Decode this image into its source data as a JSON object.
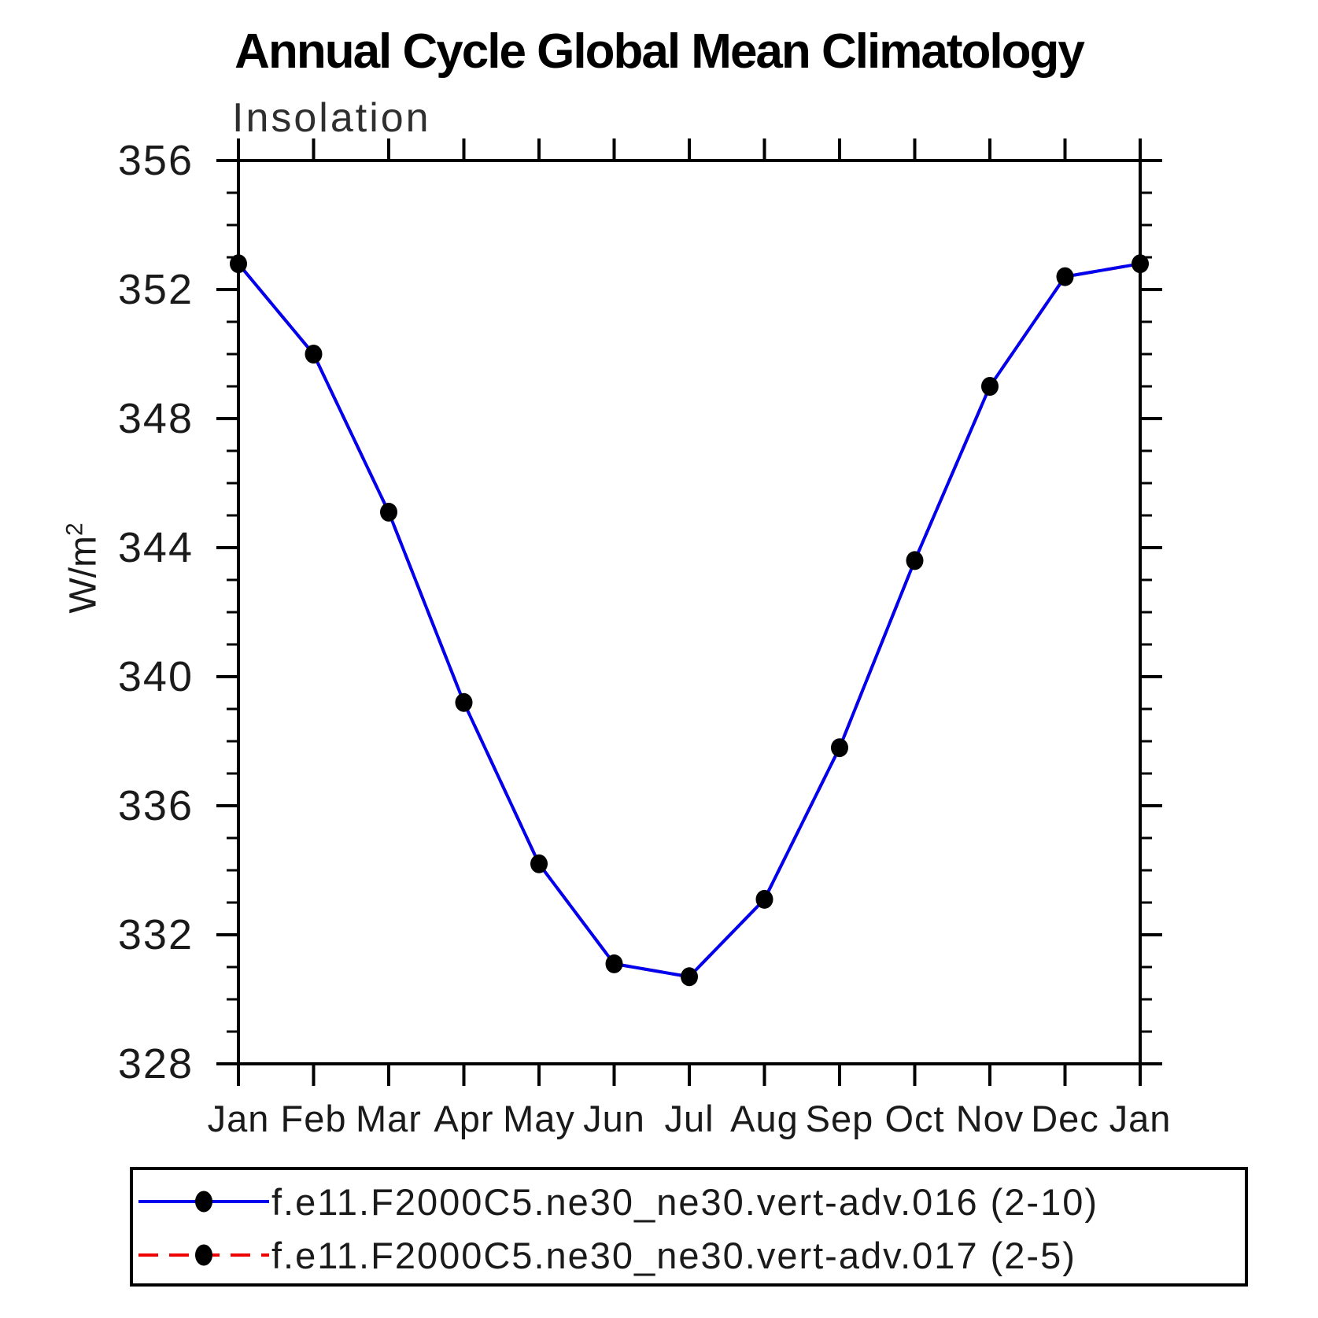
{
  "title": "Annual Cycle Global Mean Climatology",
  "panel_label": "Insolation",
  "y_axis": {
    "unit": "W/m²",
    "unit_base": "W/m",
    "unit_exponent": "2",
    "range": [
      328,
      356
    ],
    "major_tick_labels": [
      "328",
      "332",
      "336",
      "340",
      "344",
      "348",
      "352",
      "356"
    ],
    "major_step": 4,
    "minor_step": 1
  },
  "x_axis": {
    "labels": [
      "Jan",
      "Feb",
      "Mar",
      "Apr",
      "May",
      "Jun",
      "Jul",
      "Aug",
      "Sep",
      "Oct",
      "Nov",
      "Dec",
      "Jan"
    ]
  },
  "chart_data": {
    "type": "line",
    "title": "Annual Cycle Global Mean Climatology",
    "panel_label": "Insolation",
    "x_categories": [
      "Jan",
      "Feb",
      "Mar",
      "Apr",
      "May",
      "Jun",
      "Jul",
      "Aug",
      "Sep",
      "Oct",
      "Nov",
      "Dec",
      "Jan"
    ],
    "ylabel": "W/m²",
    "ylim": [
      328,
      356
    ],
    "y_major_step": 4,
    "y_minor_step": 1,
    "grid": false,
    "legend_position": "bottom-box",
    "series": [
      {
        "name": "f.e11.F2000C5.ne30_ne30.vert-adv.016 (2-10)",
        "color": "#0000ee",
        "line_style": "solid",
        "marker": "filled-circle",
        "marker_color": "#000000",
        "values": [
          352.8,
          350.0,
          345.1,
          339.2,
          334.2,
          331.1,
          330.7,
          333.1,
          337.8,
          343.6,
          349.0,
          352.4,
          352.8
        ]
      },
      {
        "name": "f.e11.F2000C5.ne30_ne30.vert-adv.017 (2-5)",
        "color": "#ee0000",
        "line_style": "dashed",
        "marker": "filled-circle",
        "marker_color": "#000000",
        "values": [
          352.8,
          350.0,
          345.1,
          339.2,
          334.2,
          331.1,
          330.7,
          333.1,
          337.8,
          343.6,
          349.0,
          352.4,
          352.8
        ]
      }
    ]
  },
  "colors": {
    "background": "#ffffff",
    "axis": "#000000",
    "text": "#1a1a1a",
    "series1": "#0000ee",
    "series2": "#ee0000",
    "marker": "#000000"
  }
}
